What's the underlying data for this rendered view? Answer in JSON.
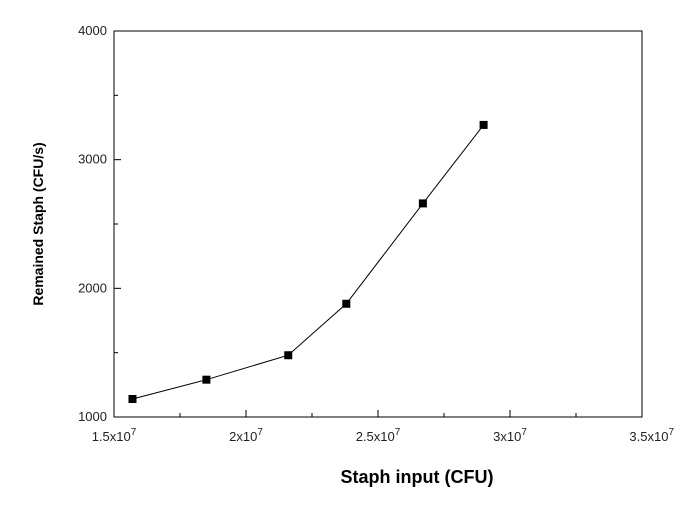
{
  "chart_data": {
    "type": "line",
    "title": "",
    "xlabel": "Staph input (CFU)",
    "ylabel": "Remained Staph (CFU/s)",
    "xlim": [
      15000000,
      35000000
    ],
    "ylim": [
      1000,
      4000
    ],
    "grid": false,
    "x_ticks": [
      {
        "value": 15000000,
        "mant": "1.5x10",
        "exp": "7"
      },
      {
        "value": 20000000,
        "mant": "2x10",
        "exp": "7"
      },
      {
        "value": 25000000,
        "mant": "2.5x10",
        "exp": "7"
      },
      {
        "value": 30000000,
        "mant": "3x10",
        "exp": "7"
      },
      {
        "value": 35000000,
        "mant": "3.5x10",
        "exp": "7"
      }
    ],
    "y_ticks": [
      {
        "value": 1000,
        "label": "1000"
      },
      {
        "value": 2000,
        "label": "2000"
      },
      {
        "value": 3000,
        "label": "3000"
      },
      {
        "value": 4000,
        "label": "4000"
      }
    ],
    "series": [
      {
        "marker": "square",
        "color": "#000000",
        "x": [
          15700000,
          18500000,
          21600000,
          23800000,
          26700000,
          29000000
        ],
        "y": [
          1140,
          1290,
          1480,
          1880,
          2660,
          3270
        ]
      }
    ]
  }
}
